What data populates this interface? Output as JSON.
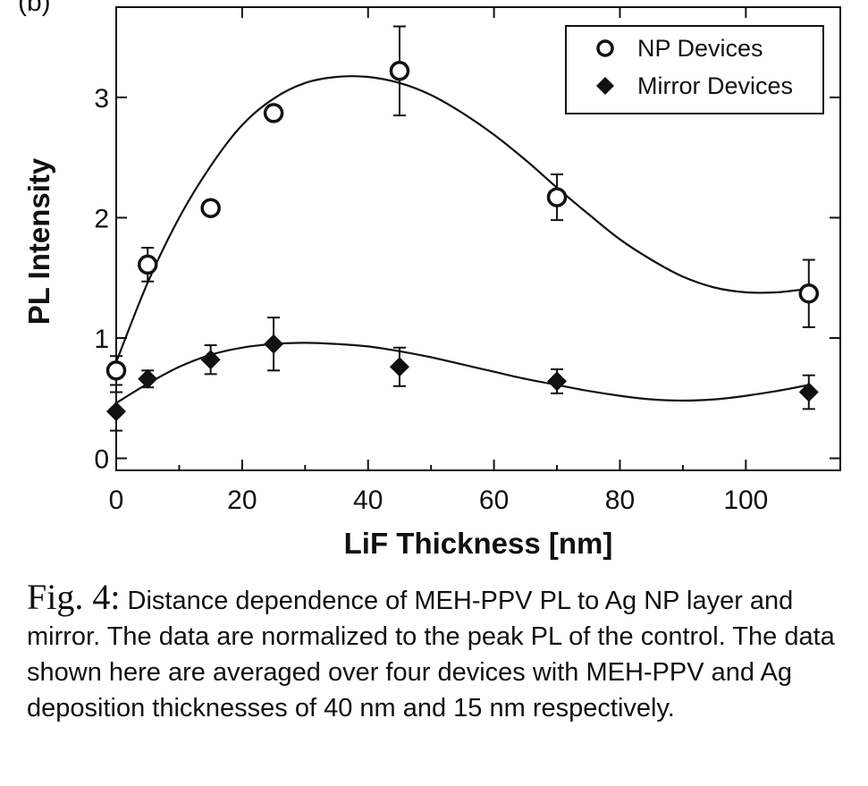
{
  "chart_data": {
    "type": "scatter",
    "panel_label": "(b)",
    "xlabel": "LiF Thickness [nm]",
    "ylabel": "PL Intensity",
    "xlim": [
      0,
      115
    ],
    "ylim": [
      -0.1,
      3.75
    ],
    "x_ticks": [
      0,
      20,
      40,
      60,
      80,
      100
    ],
    "y_ticks": [
      0,
      1,
      2,
      3
    ],
    "legend_position": "top-right",
    "series": [
      {
        "name": "NP Devices",
        "marker": "open-circle",
        "x": [
          0,
          5,
          15,
          25,
          45,
          70,
          110
        ],
        "y": [
          0.73,
          1.61,
          2.08,
          2.87,
          3.22,
          2.17,
          1.37
        ],
        "err": [
          0.12,
          0.14,
          0.05,
          0.04,
          0.37,
          0.19,
          0.28
        ],
        "fit_x": [
          0,
          5,
          10,
          15,
          20,
          25,
          30,
          35,
          40,
          45,
          50,
          55,
          60,
          65,
          70,
          75,
          80,
          85,
          90,
          95,
          100,
          105,
          110
        ],
        "fit_y": [
          0.8,
          1.46,
          2.0,
          2.43,
          2.77,
          2.99,
          3.12,
          3.17,
          3.17,
          3.12,
          3.02,
          2.87,
          2.69,
          2.48,
          2.25,
          2.03,
          1.82,
          1.65,
          1.51,
          1.42,
          1.38,
          1.38,
          1.41
        ]
      },
      {
        "name": "Mirror Devices",
        "marker": "filled-diamond",
        "x": [
          0,
          5,
          15,
          25,
          45,
          70,
          110
        ],
        "y": [
          0.39,
          0.66,
          0.82,
          0.95,
          0.76,
          0.64,
          0.55
        ],
        "err": [
          0.16,
          0.07,
          0.12,
          0.22,
          0.16,
          0.1,
          0.14
        ],
        "fit_x": [
          0,
          5,
          10,
          15,
          20,
          25,
          30,
          35,
          40,
          45,
          50,
          55,
          60,
          65,
          70,
          75,
          80,
          85,
          90,
          95,
          100,
          105,
          110
        ],
        "fit_y": [
          0.46,
          0.62,
          0.76,
          0.86,
          0.92,
          0.95,
          0.96,
          0.95,
          0.93,
          0.89,
          0.84,
          0.78,
          0.72,
          0.66,
          0.61,
          0.56,
          0.52,
          0.49,
          0.48,
          0.49,
          0.52,
          0.56,
          0.61
        ]
      }
    ]
  },
  "caption": {
    "fig_label": "Fig. 4:",
    "text": " Distance dependence of MEH-PPV PL to Ag NP layer and mirror. The data are normalized to the peak PL of the control. The data shown here are averaged over four devices with MEH-PPV and Ag deposition thicknesses of 40 nm and 15 nm respectively."
  }
}
